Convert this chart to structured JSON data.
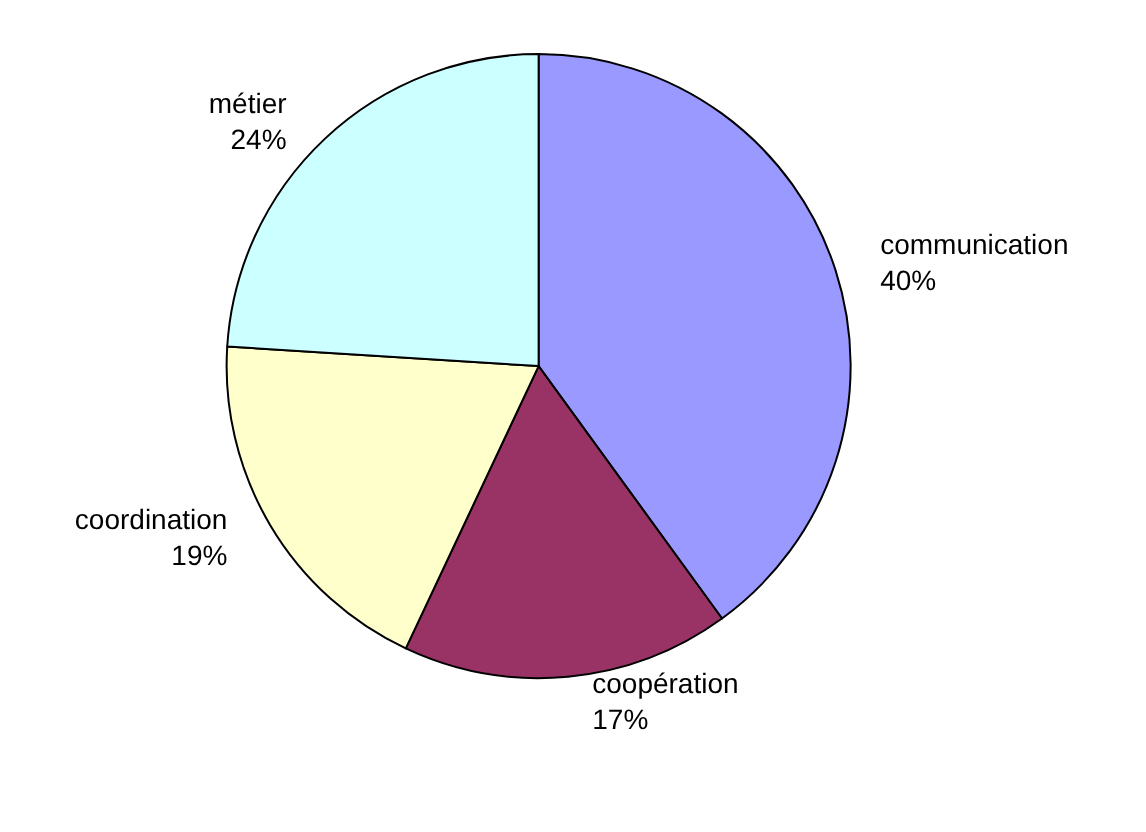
{
  "chart_data": {
    "type": "pie",
    "categories": [
      "communication",
      "coopération",
      "coordination",
      "métier"
    ],
    "values": [
      40,
      17,
      19,
      24
    ],
    "colors": [
      "#9999ff",
      "#993366",
      "#ffffcc",
      "#ccffff"
    ],
    "value_labels": [
      "40%",
      "17%",
      "19%",
      "24%"
    ],
    "legend": false
  }
}
